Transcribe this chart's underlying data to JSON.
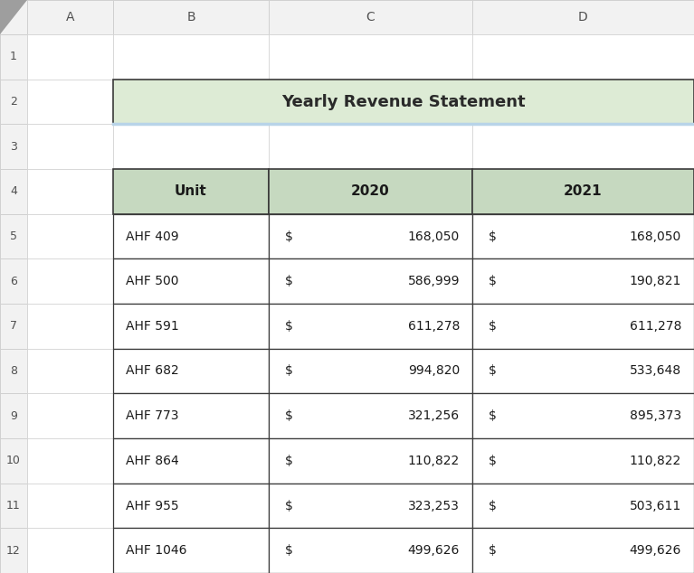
{
  "title": "Yearly Revenue Statement",
  "title_bg": "#ddebd5",
  "title_border_bottom": "#b8d4e8",
  "header_bg": "#c6d9c0",
  "header_border": "#3a3a3a",
  "col_headers": [
    "Unit",
    "2020",
    "2021"
  ],
  "rows": [
    [
      "AHF 409",
      "168,050",
      "168,050"
    ],
    [
      "AHF 500",
      "586,999",
      "190,821"
    ],
    [
      "AHF 591",
      "611,278",
      "611,278"
    ],
    [
      "AHF 682",
      "994,820",
      "533,648"
    ],
    [
      "AHF 773",
      "321,256",
      "895,373"
    ],
    [
      "AHF 864",
      "110,822",
      "110,822"
    ],
    [
      "AHF 955",
      "323,253",
      "503,611"
    ],
    [
      "AHF 1046",
      "499,626",
      "499,626"
    ]
  ],
  "row_bg": "#ffffff",
  "data_border": "#3a3a3a",
  "grid_color": "#d0d0d0",
  "col_label_bg": "#f2f2f2",
  "row_label_bg": "#f2f2f2",
  "spreadsheet_bg": "#ffffff",
  "col_letters": [
    "A",
    "B",
    "C",
    "D"
  ],
  "num_rows": 12,
  "corner_tri_color": "#9e9e9e",
  "label_text_color": "#505050"
}
